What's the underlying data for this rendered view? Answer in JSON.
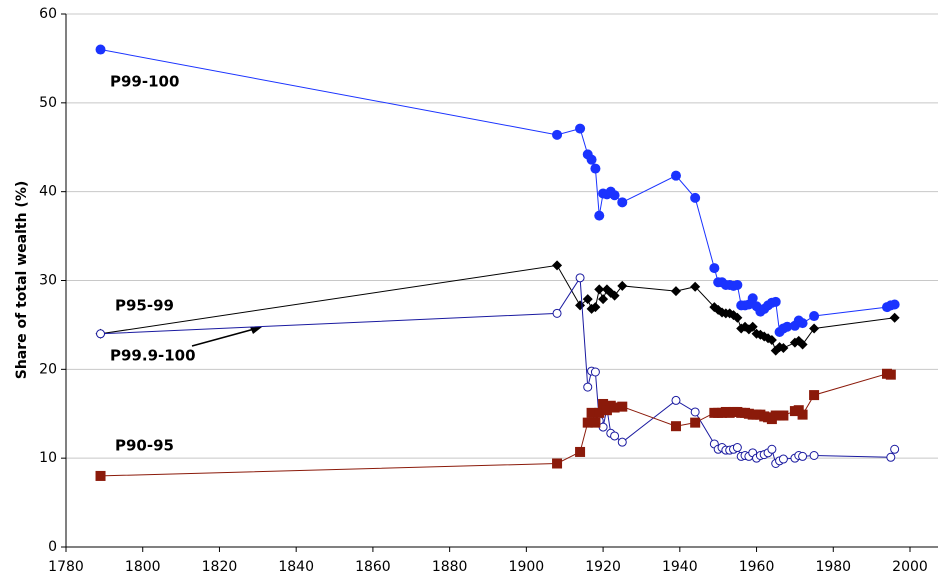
{
  "chart_data": {
    "type": "line",
    "y_label": "Share of total wealth (%)",
    "xlim": [
      1780,
      2000
    ],
    "xticks": [
      1780,
      1800,
      1820,
      1840,
      1860,
      1880,
      1900,
      1920,
      1940,
      1960,
      1980,
      2000
    ],
    "ylim": [
      0,
      60
    ],
    "yticks": [
      0,
      10,
      20,
      30,
      40,
      50,
      60
    ],
    "grid": true,
    "series": [
      {
        "name": "P99-100",
        "color": "#1a33ff",
        "marker": "circle",
        "x": [
          1789,
          1908,
          1914,
          1916,
          1917,
          1918,
          1919,
          1920,
          1921,
          1922,
          1923,
          1925,
          1939,
          1944,
          1949,
          1950,
          1951,
          1952,
          1953,
          1954,
          1955,
          1956,
          1957,
          1958,
          1959,
          1960,
          1961,
          1962,
          1963,
          1964,
          1965,
          1966,
          1967,
          1968,
          1970,
          1971,
          1972,
          1975,
          1994,
          1995,
          1996
        ],
        "values": [
          56,
          46.4,
          47.1,
          44.2,
          43.6,
          42.6,
          37.3,
          39.8,
          39.7,
          40,
          39.6,
          38.8,
          41.8,
          39.3,
          31.4,
          29.8,
          29.8,
          29.5,
          29.5,
          29.4,
          29.5,
          27.2,
          27.2,
          27.3,
          28,
          27.1,
          26.5,
          26.8,
          27.2,
          27.5,
          27.6,
          24.2,
          24.6,
          24.8,
          24.9,
          25.5,
          25.2,
          26,
          27,
          27.2,
          27.3
        ]
      },
      {
        "name": "P95-99",
        "color": "#000000",
        "marker": "diamond",
        "x": [
          1789,
          1908,
          1914,
          1916,
          1917,
          1918,
          1919,
          1920,
          1921,
          1922,
          1923,
          1925,
          1939,
          1944,
          1949,
          1950,
          1951,
          1952,
          1953,
          1954,
          1955,
          1956,
          1957,
          1958,
          1959,
          1960,
          1961,
          1962,
          1963,
          1964,
          1965,
          1966,
          1967,
          1970,
          1971,
          1972,
          1975,
          1996
        ],
        "values": [
          24,
          31.7,
          27.2,
          27.9,
          26.8,
          27,
          29,
          27.9,
          29,
          28.6,
          28.3,
          29.4,
          28.8,
          29.3,
          27,
          26.7,
          26.4,
          26.3,
          26.3,
          26.1,
          25.8,
          24.6,
          24.8,
          24.5,
          24.8,
          24,
          23.9,
          23.7,
          23.5,
          23.3,
          22.1,
          22.5,
          22.4,
          23,
          23.2,
          22.8,
          24.6,
          25.8
        ]
      },
      {
        "name": "P99.9-100",
        "color": "#1a1aa0",
        "marker": "open-circle",
        "x": [
          1789,
          1908,
          1914,
          1916,
          1917,
          1918,
          1919,
          1920,
          1921,
          1922,
          1923,
          1925,
          1939,
          1944,
          1949,
          1950,
          1951,
          1952,
          1953,
          1954,
          1955,
          1956,
          1957,
          1958,
          1959,
          1960,
          1961,
          1962,
          1963,
          1964,
          1965,
          1966,
          1967,
          1970,
          1971,
          1972,
          1975,
          1995,
          1996
        ],
        "values": [
          24,
          26.3,
          30.3,
          18,
          19.8,
          19.7,
          14.2,
          13.5,
          15.6,
          12.8,
          12.5,
          11.8,
          16.5,
          15.2,
          11.6,
          11,
          11.2,
          10.9,
          10.9,
          11,
          11.2,
          10.2,
          10.3,
          10.2,
          10.6,
          10,
          10.3,
          10.4,
          10.6,
          11,
          9.4,
          9.7,
          9.9,
          10,
          10.3,
          10.2,
          10.3,
          10.1,
          11
        ]
      },
      {
        "name": "P90-95",
        "color": "#8b1a0a",
        "marker": "square",
        "x": [
          1789,
          1908,
          1914,
          1916,
          1917,
          1918,
          1919,
          1920,
          1921,
          1922,
          1923,
          1925,
          1939,
          1944,
          1949,
          1950,
          1951,
          1952,
          1953,
          1954,
          1955,
          1956,
          1957,
          1958,
          1959,
          1960,
          1961,
          1962,
          1963,
          1964,
          1965,
          1966,
          1967,
          1970,
          1971,
          1972,
          1975,
          1994,
          1995
        ],
        "values": [
          8,
          9.4,
          10.7,
          14,
          15.1,
          14,
          15.1,
          16.1,
          15.4,
          15.9,
          15.7,
          15.8,
          13.6,
          14,
          15.1,
          15.1,
          15.1,
          15.2,
          15.1,
          15.2,
          15.2,
          15.1,
          15.1,
          15,
          14.9,
          14.9,
          14.9,
          14.7,
          14.6,
          14.4,
          14.8,
          14.8,
          14.8,
          15.3,
          15.4,
          14.9,
          17.1,
          19.5,
          19.4
        ]
      }
    ]
  }
}
